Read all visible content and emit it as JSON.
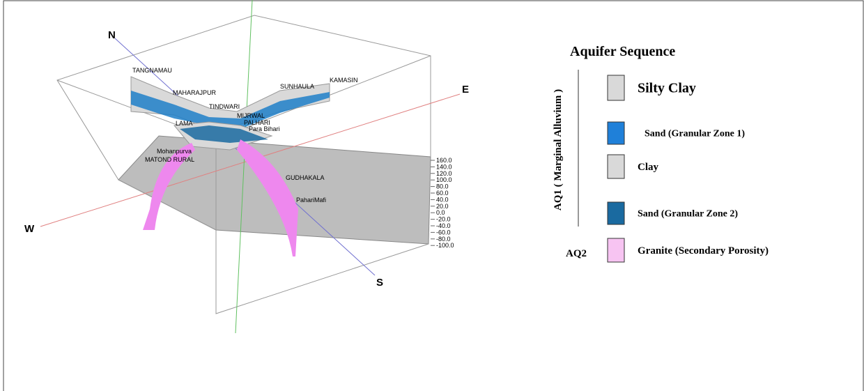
{
  "diagram": {
    "directions": {
      "north": "N",
      "east": "E",
      "west": "W",
      "south": "S"
    },
    "wells": [
      "TANGNAMAU",
      "MAHARAJPUR",
      "TINDWARI",
      "SUNHAULA",
      "KAMASIN",
      "MIJRWAL",
      "PALHARI",
      "Para Bihari",
      "LAMA",
      "Mohanpurva",
      "MATOND RURAL",
      "GUDHAKALA",
      "PahariMafi"
    ],
    "scale": [
      "160.0",
      "140.0",
      "120.0",
      "100.0",
      "80.0",
      "60.0",
      "40.0",
      "20.0",
      "0.0",
      "-20.0",
      "-40.0",
      "-60.0",
      "-80.0",
      "-100.0"
    ]
  },
  "legend": {
    "title": "Aquifer Sequence",
    "groups": [
      "AQ1 ( Marginal Alluvium )",
      "AQ2"
    ],
    "items": [
      {
        "label": "Silty Clay",
        "color": "#d9d9d9"
      },
      {
        "label": "Sand (Granular Zone 1)",
        "color": "#1f80d9"
      },
      {
        "label": "Clay",
        "color": "#d9d9d9"
      },
      {
        "label": "Sand (Granular Zone 2)",
        "color": "#1a6aa0"
      },
      {
        "label": "Granite (Secondary Porosity)",
        "color": "#f7c4f2"
      }
    ]
  }
}
